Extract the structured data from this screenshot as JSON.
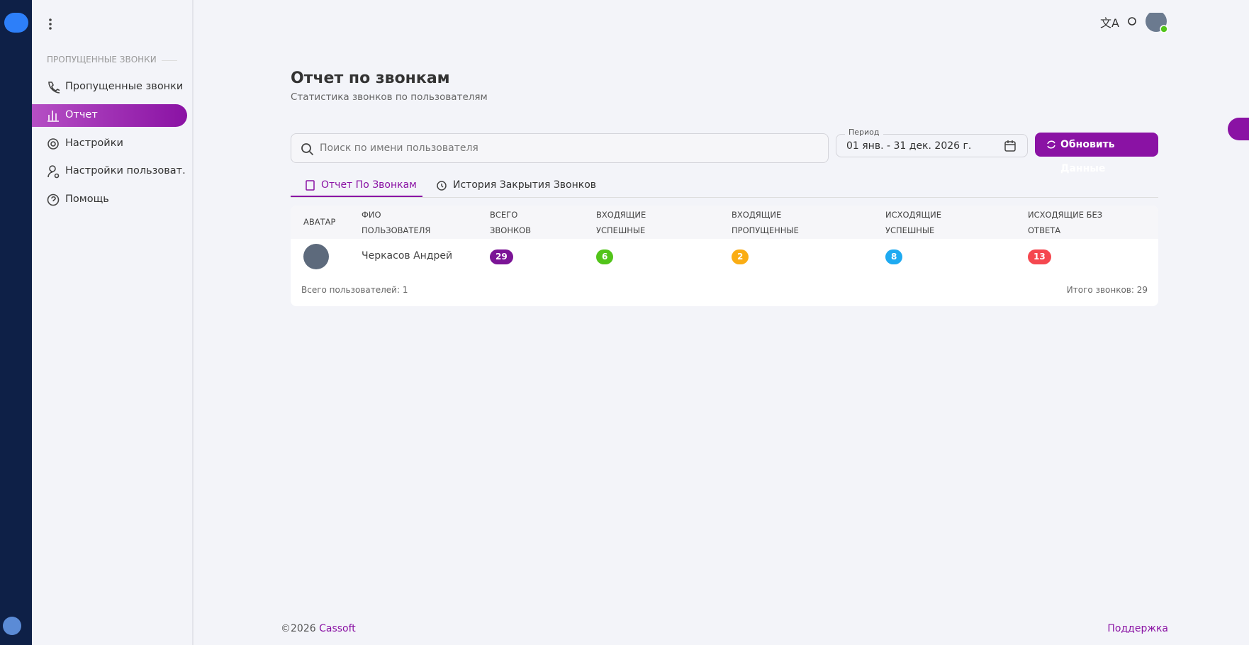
{
  "sidebar": {
    "section": "ПРОПУЩЕННЫЕ ЗВОНКИ",
    "items": [
      "Пропущенные звонки",
      "Отчет",
      "Настройки",
      "Настройки пользоват...",
      "Помощь"
    ]
  },
  "header": {
    "title": "Отчет по звонкам",
    "subtitle": "Статистика звонков по пользователям"
  },
  "filters": {
    "search_placeholder": "Поиск по имени пользователя",
    "period_label": "Период",
    "period_value": "01 янв. - 31 дек. 2026 г.",
    "refresh_button": "Обновить Данные"
  },
  "tabs": [
    "Отчет По Звонкам",
    "История Закрытия Звонков"
  ],
  "table": {
    "headers": [
      "АВАТАР",
      "ФИО ПОЛЬЗОВАТЕЛЯ",
      "ВСЕГО ЗВОНКОВ",
      "ВХОДЯЩИЕ УСПЕШНЫЕ",
      "ВХОДЯЩИЕ ПРОПУЩЕННЫЕ",
      "ИСХОДЯЩИЕ УСПЕШНЫЕ",
      "ИСХОДЯЩИЕ БЕЗ ОТВЕТА"
    ],
    "rows": [
      [
        "Черкасов Андрей",
        29,
        6,
        2,
        8,
        13
      ]
    ],
    "total_users": "Всего пользователей: 1",
    "total_calls": "Итого звонков: 29"
  },
  "footer": {
    "copyright": "©2026",
    "brand": "Cassoft",
    "support": "Поддержка"
  }
}
